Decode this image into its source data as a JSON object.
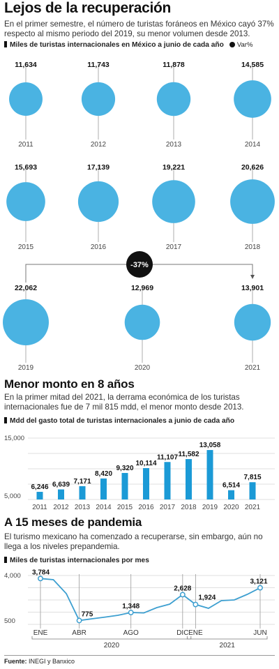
{
  "section1": {
    "title": "Lejos de la recuperación",
    "intro": "En el primer semestre, el número de turistas foráneos en México cayó 37% respecto al mismo periodo del 2019, su menor volumen desde 2013.",
    "legend_label": "Miles de turistas internacionales en México a junio de cada año",
    "legend_var": "Var%",
    "badge": "-37%",
    "bubble_color": "#4ab3e2"
  },
  "section2": {
    "title": "Menor monto en 8 años",
    "intro": "En la primer mitad del 2021, la derrama económica de los turistas internacionales fue de 7 mil 815 mdd, el menor monto desde 2013.",
    "legend_label": "Mdd del gasto total de turistas internacionales a junio de cada año",
    "bar_color": "#1b9ad6"
  },
  "section3": {
    "title": "A 15 meses de pandemia",
    "intro": "El turismo mexicano ha comenzado a recuperarse, sin embargo, aún no llega a los niveles prepandemia.",
    "legend_label": "Miles de turistas internacionales por mes",
    "line_color": "#3d9fd0"
  },
  "source": {
    "label": "Fuente:",
    "text": "INEGI y Banxico"
  },
  "chart_data": [
    {
      "type": "scatter",
      "title": "Miles de turistas internacionales en México a junio de cada año",
      "categories": [
        "2011",
        "2012",
        "2013",
        "2014",
        "2015",
        "2016",
        "2017",
        "2018",
        "2019",
        "2020",
        "2021"
      ],
      "values": [
        11634,
        11743,
        11878,
        14585,
        15693,
        17139,
        19221,
        20626,
        22062,
        12969,
        13901
      ],
      "labels": [
        "11,634",
        "11,743",
        "11,878",
        "14,585",
        "15,693",
        "17,139",
        "19,221",
        "20,626",
        "22,062",
        "12,969",
        "13,901"
      ],
      "annotation": "-37%"
    },
    {
      "type": "bar",
      "title": "Mdd del gasto total de turistas internacionales a junio de cada año",
      "categories": [
        "2011",
        "2012",
        "2013",
        "2014",
        "2015",
        "2016",
        "2017",
        "2018",
        "2019",
        "2020",
        "2021"
      ],
      "values": [
        6246,
        6639,
        7171,
        8420,
        9320,
        10114,
        11107,
        11582,
        13058,
        6514,
        7815
      ],
      "labels": [
        "6,246",
        "6,639",
        "7,171",
        "8,420",
        "9,320",
        "10,114",
        "11,107",
        "11,582",
        "13,058",
        "6,514",
        "7,815"
      ],
      "ylim": [
        5000,
        15000
      ],
      "yticks": [
        "15,000",
        "5,000"
      ],
      "grid": true
    },
    {
      "type": "line",
      "title": "Miles de turistas internacionales por mes",
      "x": [
        "2020-01",
        "2020-02",
        "2020-03",
        "2020-04",
        "2020-05",
        "2020-06",
        "2020-07",
        "2020-08",
        "2020-09",
        "2020-10",
        "2020-11",
        "2020-12",
        "2021-01",
        "2021-02",
        "2021-03",
        "2021-04",
        "2021-05",
        "2021-06"
      ],
      "values": [
        3784,
        3700,
        2700,
        775,
        900,
        1020,
        1150,
        1348,
        1320,
        1700,
        1950,
        2628,
        1924,
        1650,
        2200,
        2250,
        2650,
        3121
      ],
      "point_labels": [
        {
          "index": 0,
          "text": "3,784"
        },
        {
          "index": 3,
          "text": "775"
        },
        {
          "index": 7,
          "text": "1,348"
        },
        {
          "index": 11,
          "text": "2,628"
        },
        {
          "index": 12,
          "text": "1,924"
        },
        {
          "index": 17,
          "text": "3,121"
        }
      ],
      "ylim": [
        500,
        4000
      ],
      "yticks": [
        "4,000",
        "500"
      ],
      "tick_labels": [
        {
          "index": 0,
          "text": "ENE"
        },
        {
          "index": 3,
          "text": "ABR"
        },
        {
          "index": 7,
          "text": "AGO"
        },
        {
          "index": 11,
          "text": "DIC"
        },
        {
          "index": 12,
          "text": "ENE"
        },
        {
          "index": 17,
          "text": "JUN"
        }
      ],
      "year_labels": [
        "2020",
        "2021"
      ],
      "grid": true
    }
  ]
}
